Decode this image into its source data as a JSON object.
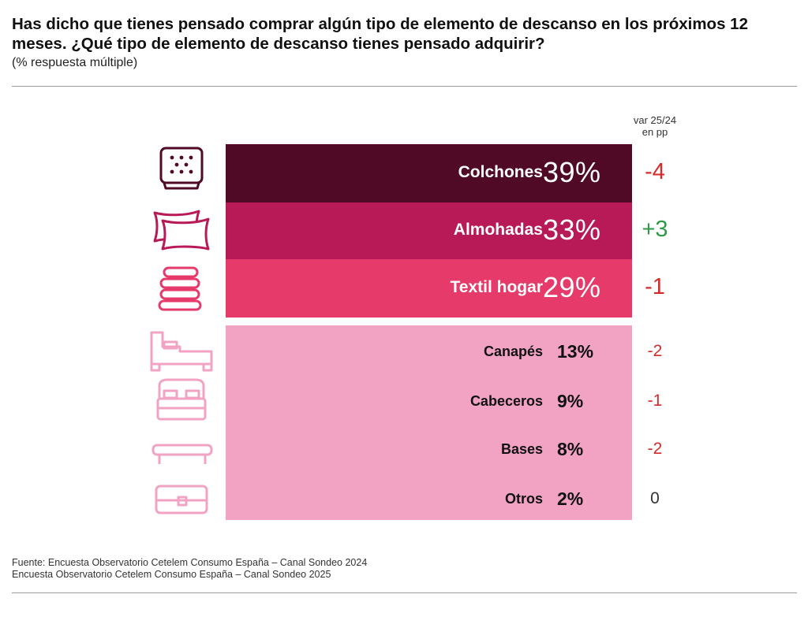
{
  "title": "Has dicho que tienes pensado comprar algún tipo de elemento de descanso en los próximos 12 meses. ¿Qué tipo de elemento de descanso tienes pensado adquirir?",
  "subtitle": "(% respuesta múltiple)",
  "var_header_line1": "var 25/24",
  "var_header_line2": "en pp",
  "source_line1": "Fuente: Encuesta Observatorio Cetelem Consumo España – Canal Sondeo 2024",
  "source_line2": "Encuesta Observatorio Cetelem Consumo España – Canal Sondeo 2025",
  "colors": {
    "dark": "#500a26",
    "mid": "#b81a58",
    "bright": "#e53a6a",
    "light": "#f2a3c4",
    "negative": "#d42a2a",
    "positive": "#2f9a46",
    "neutral": "#333333"
  },
  "chart_data": {
    "type": "bar",
    "orientation": "horizontal",
    "categories": [
      "Colchones",
      "Almohadas",
      "Textil hogar",
      "Canapés",
      "Cabeceros",
      "Bases",
      "Otros"
    ],
    "values": [
      39,
      33,
      29,
      13,
      9,
      8,
      2
    ],
    "value_labels": [
      "39%",
      "33%",
      "29%",
      "13%",
      "9%",
      "8%",
      "2%"
    ],
    "var_25_24_pp": [
      -4,
      3,
      -1,
      -2,
      -1,
      -2,
      0
    ],
    "var_labels": [
      "-4",
      "+3",
      "-1",
      "-2",
      "-1",
      "-2",
      "0"
    ],
    "icons": [
      "mattress-icon",
      "pillows-icon",
      "towels-icon",
      "ottoman-bed-icon",
      "headboard-bed-icon",
      "bed-base-icon",
      "box-icon"
    ],
    "unit": "%"
  }
}
